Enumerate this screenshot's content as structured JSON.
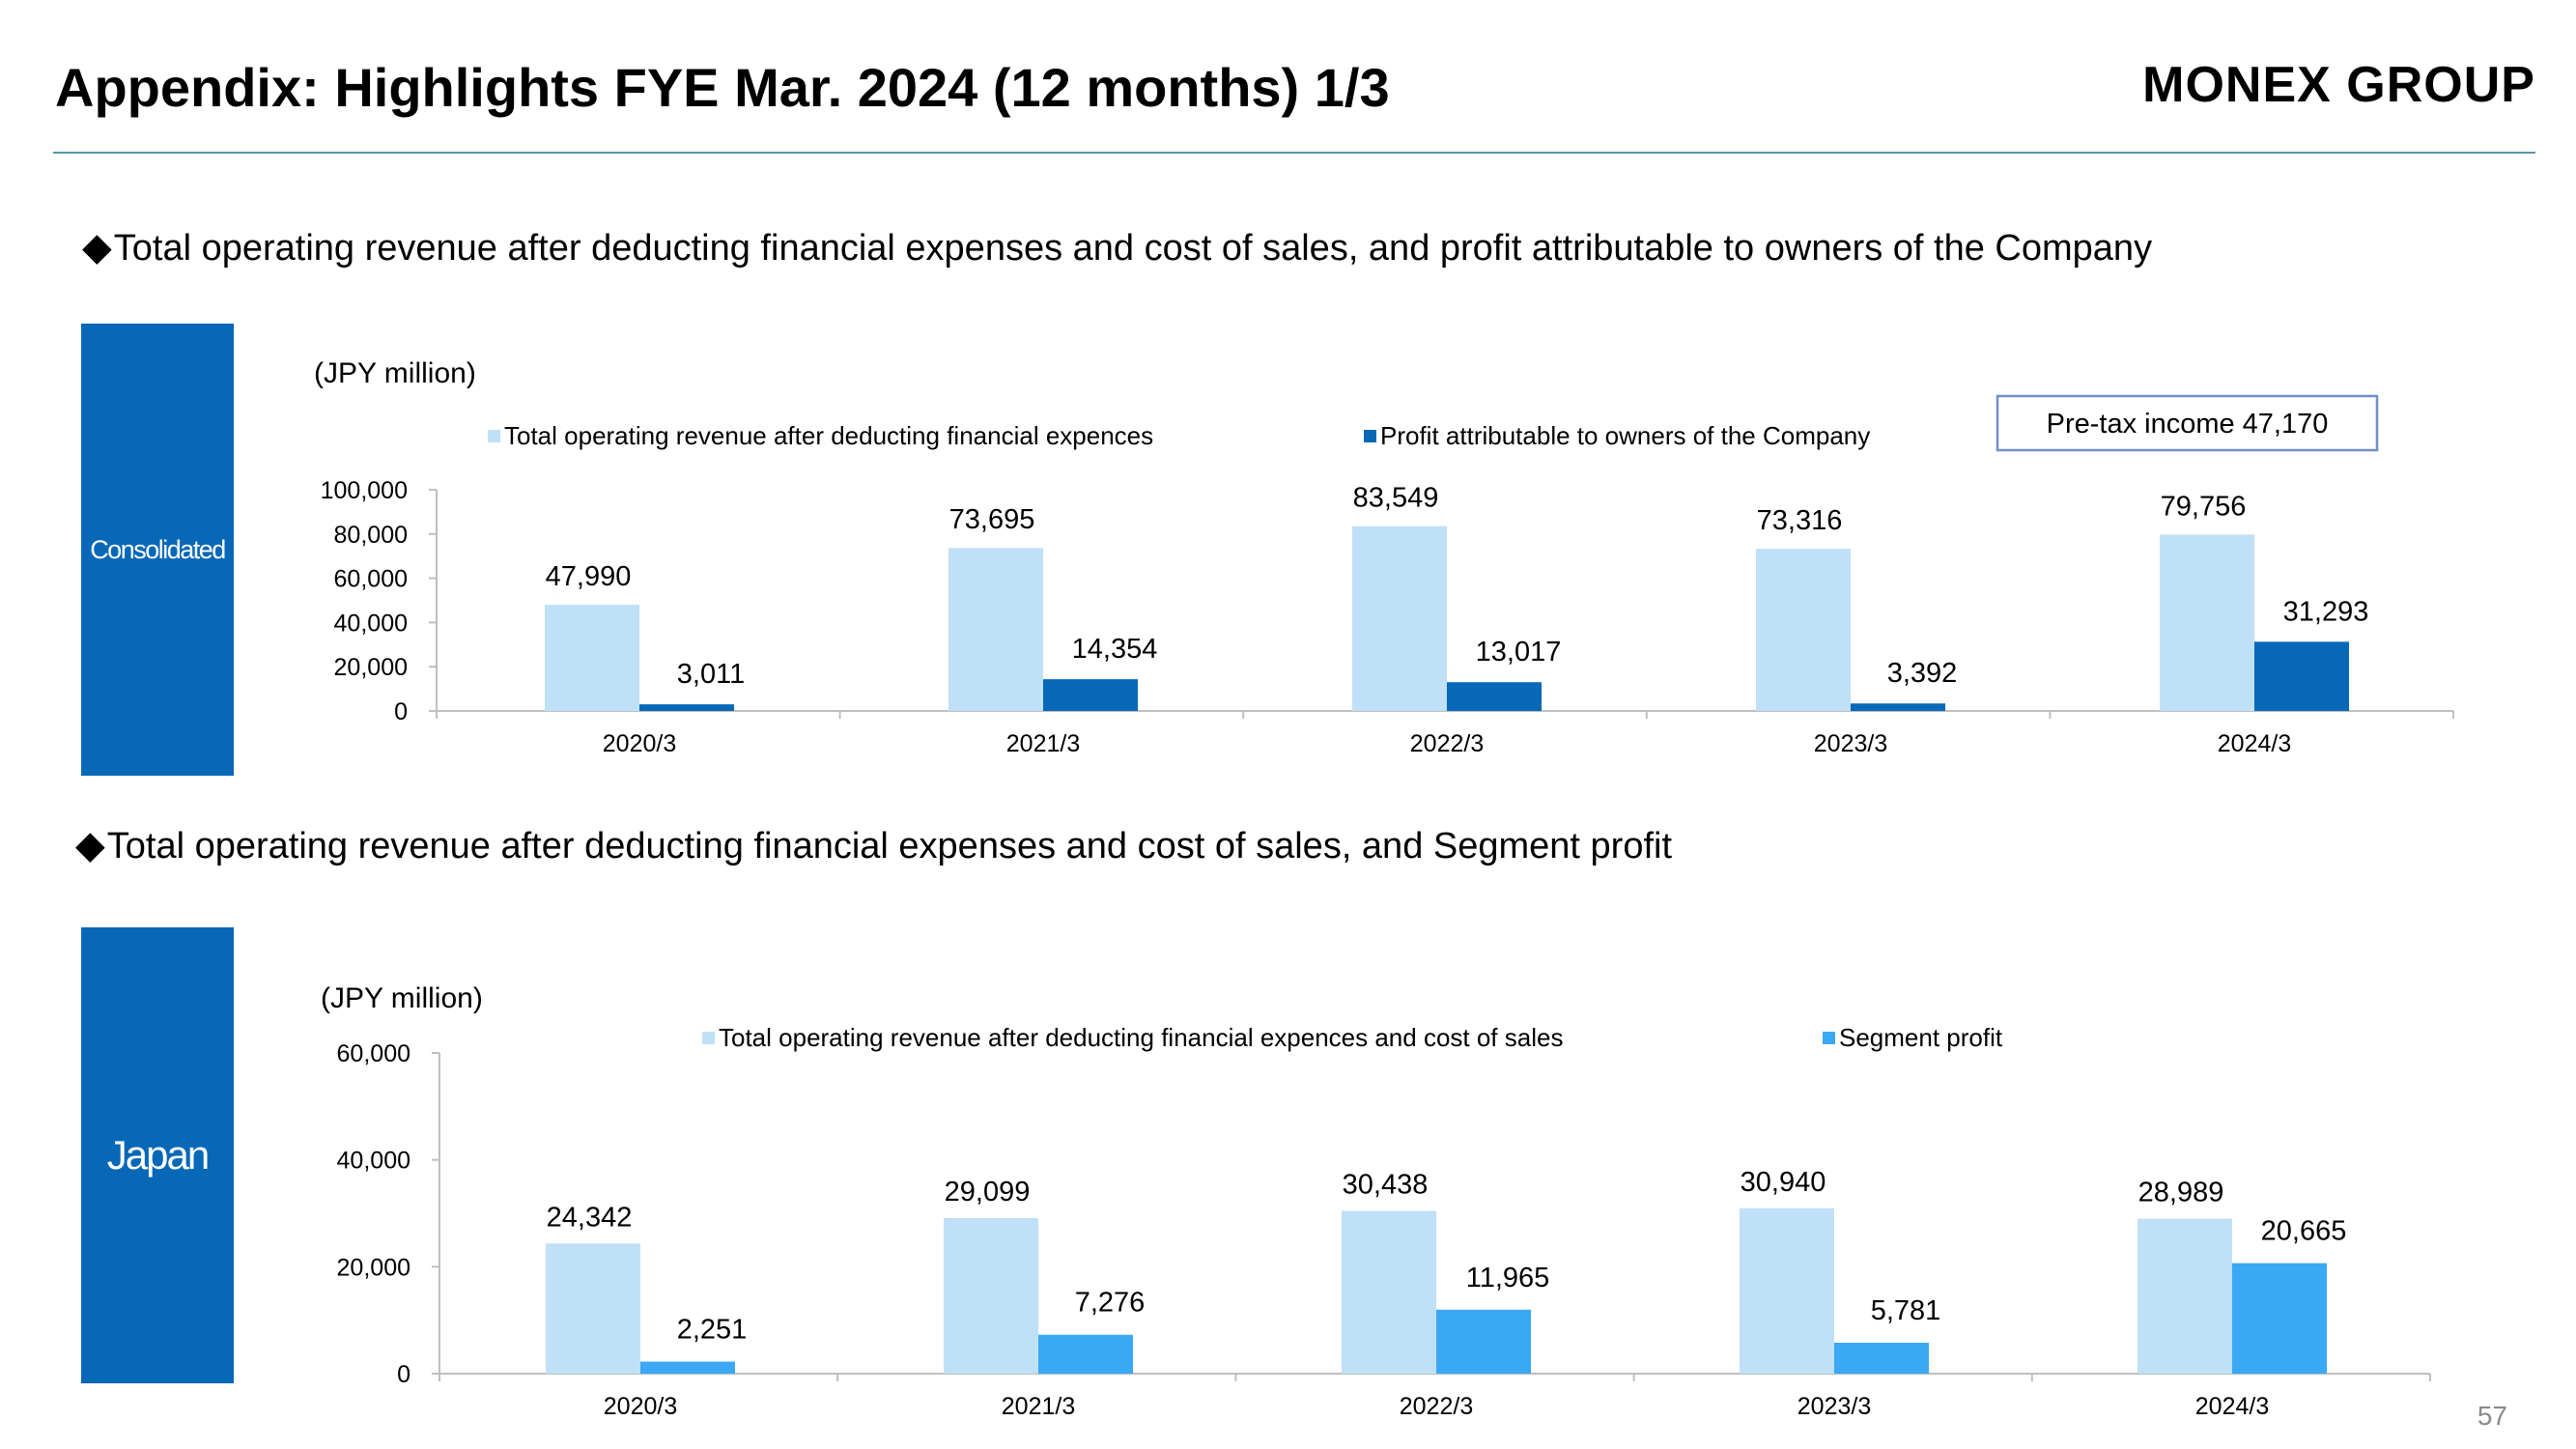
{
  "header": {
    "title": "Appendix: Highlights FYE Mar. 2024 (12 months) 1/3",
    "logo_text": "MONEX GROUP"
  },
  "sections": [
    {
      "heading": "Total operating revenue after deducting financial expenses and cost of sales, and profit attributable to owners of the Company",
      "tab_label": "Consolidated"
    },
    {
      "heading": "Total operating revenue after deducting financial expenses and cost of sales, and Segment profit",
      "tab_label": "Japan"
    }
  ],
  "page_number": "57",
  "colors": {
    "accent": "#0768b8",
    "rule": "#5a93ab"
  },
  "chart_data": [
    {
      "type": "bar",
      "unit_label": "(JPY million)",
      "categories": [
        "2020/3",
        "2021/3",
        "2022/3",
        "2023/3",
        "2024/3"
      ],
      "series": [
        {
          "name": "Total operating revenue after deducting financial expences",
          "values": [
            47990,
            73695,
            83549,
            73316,
            79756
          ],
          "labels": [
            "47,990",
            "73,695",
            "83,549",
            "73,316",
            "79,756"
          ],
          "color": "#bfe0f7"
        },
        {
          "name": "Profit attributable to owners of the Company",
          "values": [
            3011,
            14354,
            13017,
            3392,
            31293
          ],
          "labels": [
            "3,011",
            "14,354",
            "13,017",
            "3,392",
            "31,293"
          ],
          "color": "#0768b8"
        }
      ],
      "ylim": [
        0,
        100000
      ],
      "yticks": [
        0,
        20000,
        40000,
        60000,
        80000,
        100000
      ],
      "ytick_labels": [
        "0",
        "20,000",
        "40,000",
        "60,000",
        "80,000",
        "100,000"
      ],
      "legend_position": "top",
      "grid": false,
      "annotation": "Pre-tax income  47,170"
    },
    {
      "type": "bar",
      "unit_label": "(JPY million)",
      "categories": [
        "2020/3",
        "2021/3",
        "2022/3",
        "2023/3",
        "2024/3"
      ],
      "series": [
        {
          "name": "Total operating revenue after deducting financial expences and cost of sales",
          "values": [
            24342,
            29099,
            30438,
            30940,
            28989
          ],
          "labels": [
            "24,342",
            "29,099",
            "30,438",
            "30,940",
            "28,989"
          ],
          "color": "#bfe0f7"
        },
        {
          "name": "Segment profit",
          "values": [
            2251,
            7276,
            11965,
            5781,
            20665
          ],
          "labels": [
            "2,251",
            "7,276",
            "11,965",
            "5,781",
            "20,665"
          ],
          "color": "#3aa8f2"
        }
      ],
      "ylim": [
        0,
        60000
      ],
      "yticks": [
        0,
        20000,
        40000,
        60000
      ],
      "ytick_labels": [
        "0",
        "20,000",
        "40,000",
        "60,000"
      ],
      "legend_position": "top",
      "grid": false
    }
  ]
}
